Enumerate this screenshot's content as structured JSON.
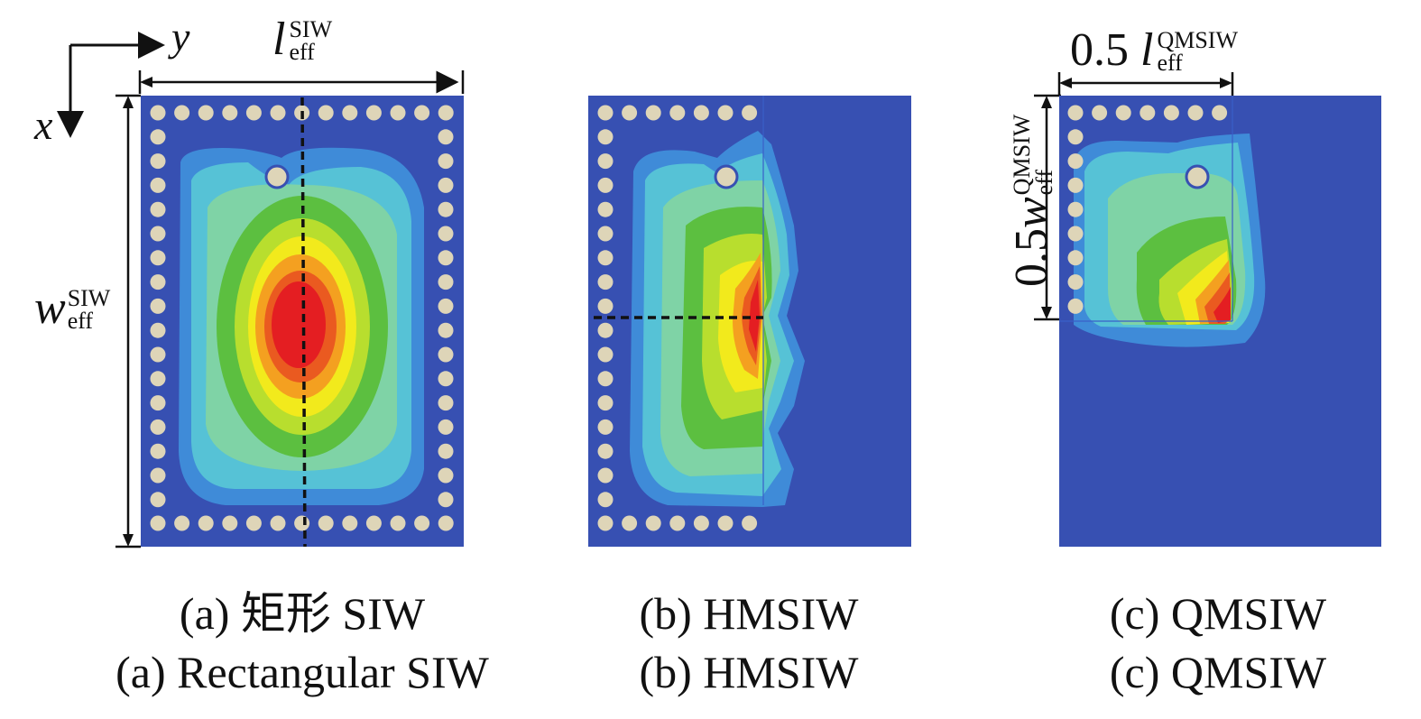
{
  "axes": {
    "x": "x",
    "y": "y"
  },
  "dims": {
    "l_siw": {
      "sym": "l",
      "sub": "eff",
      "sup": "SIW"
    },
    "w_siw": {
      "sym": "w",
      "sub": "eff",
      "sup": "SIW"
    },
    "l_qm": {
      "prefix": "0.5 ",
      "sym": "l",
      "sub": "eff",
      "sup": "QMSIW"
    },
    "w_qm": {
      "prefix": "0.5",
      "sym": "w",
      "sub": "eff",
      "sup": "QMSIW"
    }
  },
  "captions": {
    "a_cn": "(a) 矩形 SIW",
    "a_en": "(a) Rectangular SIW",
    "b_cn": "(b) HMSIW",
    "b_en": "(b) HMSIW",
    "c_cn": "(c) QMSIW",
    "c_en": "(c) QMSIW"
  },
  "colors": {
    "substrate": "#3750b2",
    "via": "#ded5b8",
    "field_scale": [
      "#3a52b4",
      "#3f8bd8",
      "#56c2d6",
      "#7fd3a6",
      "#5cbf40",
      "#b8de2e",
      "#f2ea1c",
      "#f4a020",
      "#ea5a20",
      "#e41e22"
    ]
  }
}
